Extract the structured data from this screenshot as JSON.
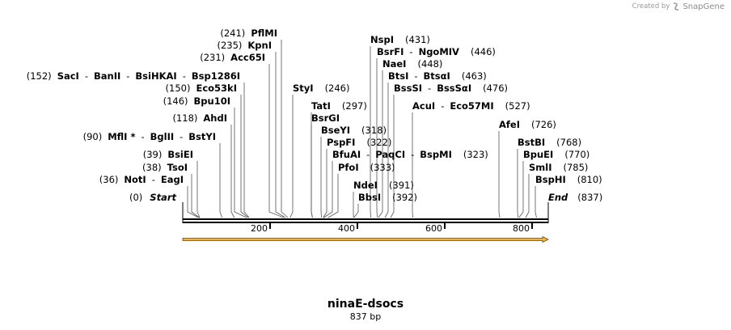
{
  "credit": {
    "created_by": "Created by",
    "brand": "SnapGene"
  },
  "sequence": {
    "name": "ninaE-dsocs",
    "length_label": "837 bp",
    "length": 837
  },
  "ends": {
    "start_pos": "(0)",
    "start_label": "Start",
    "end_label": "End",
    "end_pos": "(837)"
  },
  "ruler": {
    "ticks": [
      200,
      400,
      600,
      800
    ],
    "tick_labels": [
      "200",
      "400",
      "600",
      "800"
    ]
  },
  "feature": {
    "type": "arrow",
    "color": "#f0b23c",
    "from": 0,
    "to": 837,
    "direction": "forward"
  },
  "sites": [
    {
      "pos": 36,
      "parts": [
        "(36)",
        "NotI",
        "EagI"
      ]
    },
    {
      "pos": 38,
      "parts": [
        "(38)",
        "TsoI"
      ]
    },
    {
      "pos": 39,
      "parts": [
        "(39)",
        "BsiEI"
      ]
    },
    {
      "pos": 90,
      "parts": [
        "(90)",
        "MflI *",
        "BglII",
        "BstYI"
      ]
    },
    {
      "pos": 118,
      "parts": [
        "(118)",
        "AhdI"
      ]
    },
    {
      "pos": 146,
      "parts": [
        "(146)",
        "Bpu10I"
      ]
    },
    {
      "pos": 150,
      "parts": [
        "(150)",
        "Eco53kI"
      ]
    },
    {
      "pos": 152,
      "parts": [
        "(152)",
        "SacI",
        "BanII",
        "BsiHKAI",
        "Bsp1286I"
      ]
    },
    {
      "pos": 231,
      "parts": [
        "(231)",
        "Acc65I"
      ]
    },
    {
      "pos": 235,
      "parts": [
        "(235)",
        "KpnI"
      ]
    },
    {
      "pos": 241,
      "parts": [
        "(241)",
        "PflMI"
      ]
    },
    {
      "pos": 246,
      "parts": [
        "StyI",
        "(246)"
      ]
    },
    {
      "pos": 297,
      "parts": [
        "TatI",
        "(297)"
      ]
    },
    {
      "pos": 297,
      "parts": [
        "BsrGI"
      ]
    },
    {
      "pos": 318,
      "parts": [
        "BseYI",
        "(318)"
      ]
    },
    {
      "pos": 322,
      "parts": [
        "PspFI",
        "(322)"
      ]
    },
    {
      "pos": 323,
      "parts": [
        "BfuAI",
        "PaqCI",
        "BspMI",
        "(323)"
      ]
    },
    {
      "pos": 333,
      "parts": [
        "PfoI",
        "(333)"
      ]
    },
    {
      "pos": 391,
      "parts": [
        "NdeI",
        "(391)"
      ]
    },
    {
      "pos": 392,
      "parts": [
        "BbsI",
        "(392)"
      ]
    },
    {
      "pos": 431,
      "parts": [
        "NspI",
        "(431)"
      ]
    },
    {
      "pos": 446,
      "parts": [
        "BsrFI",
        "NgoMIV",
        "(446)"
      ]
    },
    {
      "pos": 448,
      "parts": [
        "NaeI",
        "(448)"
      ]
    },
    {
      "pos": 463,
      "parts": [
        "BtsI",
        "BtsαI",
        "(463)"
      ]
    },
    {
      "pos": 476,
      "parts": [
        "BssSI",
        "BssSαI",
        "(476)"
      ]
    },
    {
      "pos": 527,
      "parts": [
        "AcuI",
        "Eco57MI",
        "(527)"
      ]
    },
    {
      "pos": 726,
      "parts": [
        "AfeI",
        "(726)"
      ]
    },
    {
      "pos": 768,
      "parts": [
        "BstBI",
        "(768)"
      ]
    },
    {
      "pos": 770,
      "parts": [
        "BpuEI",
        "(770)"
      ]
    },
    {
      "pos": 785,
      "parts": [
        "SmlI",
        "(785)"
      ]
    },
    {
      "pos": 810,
      "parts": [
        "BspHI",
        "(810)"
      ]
    }
  ]
}
